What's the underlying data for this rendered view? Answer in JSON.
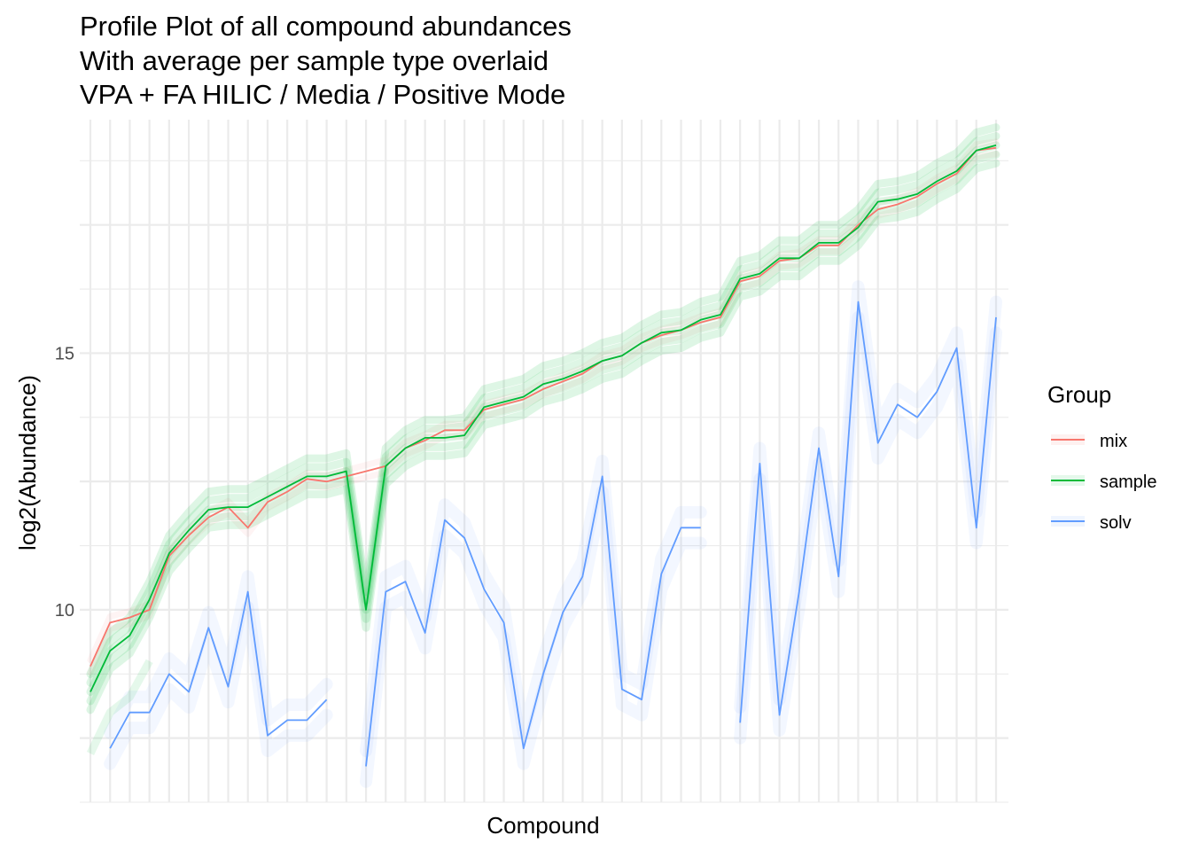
{
  "chart_data": {
    "type": "line",
    "title": [
      "Profile Plot of all compound abundances",
      "With average per sample type overlaid",
      "VPA + FA HILIC / Media / Positive Mode"
    ],
    "xlabel": "Compound",
    "ylabel": "log2(Abundance)",
    "ylim": [
      6.25,
      19.55
    ],
    "yticks": [
      10,
      15
    ],
    "n_compounds": 47,
    "grid": true,
    "legend": {
      "title": "Group",
      "position": "right",
      "entries": [
        "mix",
        "sample",
        "solv"
      ]
    },
    "colors": {
      "mix": "#F8766D",
      "sample": "#00BA38",
      "solv": "#619CFF",
      "grid": "#ebebeb"
    },
    "series": [
      {
        "name": "mix",
        "values": [
          8.9,
          9.75,
          9.85,
          10.0,
          11.05,
          11.45,
          11.8,
          12.0,
          11.6,
          12.1,
          12.3,
          12.55,
          12.5,
          12.6,
          12.7,
          12.8,
          13.15,
          13.3,
          13.5,
          13.5,
          13.9,
          14.0,
          14.1,
          14.3,
          14.45,
          14.6,
          14.85,
          14.95,
          15.2,
          15.35,
          15.45,
          15.6,
          15.7,
          16.4,
          16.5,
          16.8,
          16.85,
          17.1,
          17.1,
          17.5,
          17.8,
          17.9,
          18.05,
          18.3,
          18.5,
          18.95,
          19.0
        ]
      },
      {
        "name": "sample",
        "values": [
          8.4,
          9.2,
          9.5,
          10.2,
          11.1,
          11.55,
          11.95,
          12.0,
          12.0,
          12.2,
          12.4,
          12.6,
          12.6,
          12.7,
          10.0,
          12.8,
          13.15,
          13.35,
          13.35,
          13.4,
          13.95,
          14.05,
          14.15,
          14.4,
          14.5,
          14.65,
          14.85,
          14.95,
          15.2,
          15.4,
          15.45,
          15.65,
          15.75,
          16.45,
          16.55,
          16.85,
          16.85,
          17.15,
          17.15,
          17.45,
          17.95,
          18.0,
          18.1,
          18.35,
          18.55,
          18.95,
          19.05
        ]
      },
      {
        "name": "solv",
        "values": [
          null,
          7.3,
          8.0,
          8.0,
          8.75,
          8.4,
          9.65,
          8.5,
          10.35,
          7.55,
          7.85,
          7.85,
          8.25,
          null,
          6.95,
          10.35,
          10.55,
          9.55,
          11.75,
          11.4,
          10.4,
          9.75,
          7.3,
          8.75,
          9.95,
          10.65,
          12.6,
          8.45,
          8.25,
          10.7,
          11.6,
          11.6,
          null,
          7.8,
          12.85,
          7.95,
          10.35,
          13.15,
          10.65,
          16.0,
          13.25,
          14.0,
          13.75,
          14.25,
          15.1,
          11.6,
          15.7
        ]
      }
    ],
    "samples_note": "Faint individual sample/solvent profiles are drawn as translucent bands around each group mean"
  }
}
